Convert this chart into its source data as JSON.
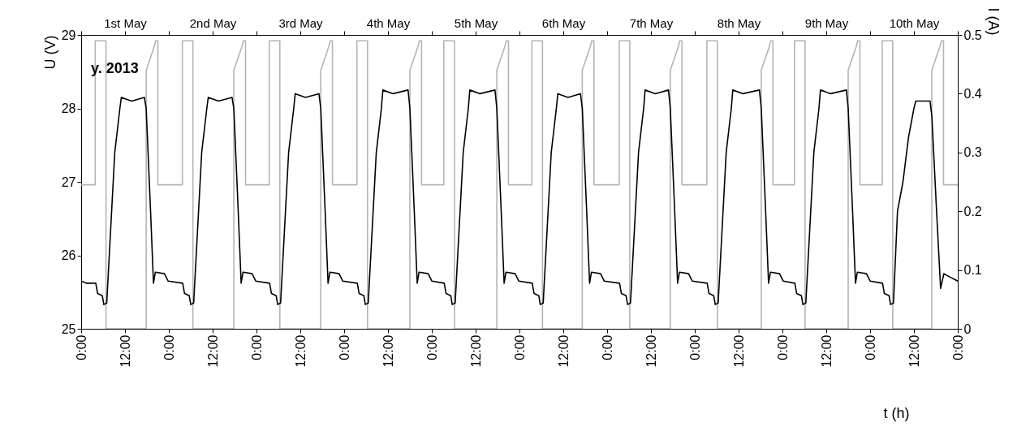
{
  "chart_data": {
    "type": "line",
    "xlabel": "t (h)",
    "ylabel": "U (V)",
    "y2label": "I (A)",
    "annotations": [
      "y. 2013"
    ],
    "xlim": [
      "2013-05-01T00:00",
      "2013-05-11T00:00"
    ],
    "xticks": [
      {
        "value": "2013-05-01T00:00",
        "label": "0:00"
      },
      {
        "value": "2013-05-01T12:00",
        "label": "12:00"
      },
      {
        "value": "2013-05-02T00:00",
        "label": "0:00"
      },
      {
        "value": "2013-05-02T12:00",
        "label": "12:00"
      },
      {
        "value": "2013-05-03T00:00",
        "label": "0:00"
      },
      {
        "value": "2013-05-03T12:00",
        "label": "12:00"
      },
      {
        "value": "2013-05-04T00:00",
        "label": "0:00"
      },
      {
        "value": "2013-05-04T12:00",
        "label": "12:00"
      },
      {
        "value": "2013-05-05T00:00",
        "label": "0:00"
      },
      {
        "value": "2013-05-05T12:00",
        "label": "12:00"
      },
      {
        "value": "2013-05-06T00:00",
        "label": "0:00"
      },
      {
        "value": "2013-05-06T12:00",
        "label": "12:00"
      },
      {
        "value": "2013-05-07T00:00",
        "label": "0:00"
      },
      {
        "value": "2013-05-07T12:00",
        "label": "12:00"
      },
      {
        "value": "2013-05-08T00:00",
        "label": "0:00"
      },
      {
        "value": "2013-05-08T12:00",
        "label": "12:00"
      },
      {
        "value": "2013-05-09T00:00",
        "label": "0:00"
      },
      {
        "value": "2013-05-09T12:00",
        "label": "12:00"
      },
      {
        "value": "2013-05-10T00:00",
        "label": "0:00"
      },
      {
        "value": "2013-05-10T12:00",
        "label": "12:00"
      },
      {
        "value": "2013-05-11T00:00",
        "label": "0:00"
      }
    ],
    "x2lim": [
      "2013-05-01T00:00",
      "2013-05-11T00:00"
    ],
    "x2ticks": [
      {
        "value": "2013-05-01T00:00",
        "label": null
      },
      {
        "value": "2013-05-01T12:00",
        "label": "1st May"
      },
      {
        "value": "2013-05-02T00:00",
        "label": null
      },
      {
        "value": "2013-05-02T12:00",
        "label": "2nd May"
      },
      {
        "value": "2013-05-03T00:00",
        "label": null
      },
      {
        "value": "2013-05-03T12:00",
        "label": "3rd May"
      },
      {
        "value": "2013-05-04T00:00",
        "label": null
      },
      {
        "value": "2013-05-04T12:00",
        "label": "4th May"
      },
      {
        "value": "2013-05-05T00:00",
        "label": null
      },
      {
        "value": "2013-05-05T12:00",
        "label": "5th May"
      },
      {
        "value": "2013-05-06T00:00",
        "label": null
      },
      {
        "value": "2013-05-06T12:00",
        "label": "6th May"
      },
      {
        "value": "2013-05-07T00:00",
        "label": null
      },
      {
        "value": "2013-05-07T12:00",
        "label": "7th May"
      },
      {
        "value": "2013-05-08T00:00",
        "label": null
      },
      {
        "value": "2013-05-08T12:00",
        "label": "8th May"
      },
      {
        "value": "2013-05-09T00:00",
        "label": null
      },
      {
        "value": "2013-05-09T12:00",
        "label": "9th May"
      },
      {
        "value": "2013-05-10T00:00",
        "label": null
      },
      {
        "value": "2013-05-10T12:00",
        "label": "10th  May"
      },
      {
        "value": "2013-05-11T00:00",
        "label": null
      }
    ],
    "ylim": [
      25,
      29
    ],
    "yticks": [
      25,
      26,
      27,
      28,
      29
    ],
    "y2lim": [
      0,
      0.5
    ],
    "y2ticks": [
      0,
      0.1,
      0.2,
      0.3,
      0.4,
      0.5
    ],
    "grid": false,
    "legend": false,
    "series": [
      {
        "color": "#b4b4b4",
        "axis": "y2",
        "x": [
          "2013-05-01T00:00",
          "2013-05-01T03:51",
          "2013-05-01T03:51",
          "2013-05-01T06:48",
          "2013-05-01T06:48",
          "2013-05-01T17:48",
          "2013-05-01T17:48",
          "2013-05-01T20:00",
          "2013-05-01T20:24",
          "2013-05-01T21:00",
          "2013-05-01T21:00",
          "2013-05-02T03:42",
          "2013-05-02T03:42",
          "2013-05-02T06:36",
          "2013-05-02T06:36",
          "2013-05-02T17:48",
          "2013-05-02T17:48",
          "2013-05-02T20:00",
          "2013-05-02T20:24",
          "2013-05-02T21:00",
          "2013-05-02T21:00",
          "2013-05-03T03:30",
          "2013-05-03T03:30",
          "2013-05-03T06:24",
          "2013-05-03T06:24",
          "2013-05-03T17:36",
          "2013-05-03T17:36",
          "2013-05-03T19:48",
          "2013-05-03T20:12",
          "2013-05-03T20:48",
          "2013-05-03T20:48",
          "2013-05-04T03:30",
          "2013-05-04T03:30",
          "2013-05-04T06:24",
          "2013-05-04T06:24",
          "2013-05-04T18:00",
          "2013-05-04T18:00",
          "2013-05-04T20:12",
          "2013-05-04T20:36",
          "2013-05-04T21:12",
          "2013-05-04T21:12",
          "2013-05-05T03:18",
          "2013-05-05T03:18",
          "2013-05-05T06:12",
          "2013-05-05T06:12",
          "2013-05-05T17:48",
          "2013-05-05T17:48",
          "2013-05-05T20:00",
          "2013-05-05T20:24",
          "2013-05-05T21:00",
          "2013-05-05T21:00",
          "2013-05-06T03:24",
          "2013-05-06T03:24",
          "2013-05-06T06:18",
          "2013-05-06T06:18",
          "2013-05-06T17:12",
          "2013-05-06T17:12",
          "2013-05-06T19:24",
          "2013-05-06T19:48",
          "2013-05-06T20:24",
          "2013-05-06T20:24",
          "2013-05-07T03:18",
          "2013-05-07T03:18",
          "2013-05-07T06:12",
          "2013-05-07T06:12",
          "2013-05-07T17:18",
          "2013-05-07T17:18",
          "2013-05-07T19:30",
          "2013-05-07T19:54",
          "2013-05-07T20:30",
          "2013-05-07T20:30",
          "2013-05-08T03:18",
          "2013-05-08T03:18",
          "2013-05-08T06:12",
          "2013-05-08T06:12",
          "2013-05-08T18:12",
          "2013-05-08T18:12",
          "2013-05-08T20:24",
          "2013-05-08T20:48",
          "2013-05-08T21:24",
          "2013-05-08T21:24",
          "2013-05-09T03:18",
          "2013-05-09T03:18",
          "2013-05-09T06:12",
          "2013-05-09T06:12",
          "2013-05-09T18:00",
          "2013-05-09T18:00",
          "2013-05-09T20:12",
          "2013-05-09T20:36",
          "2013-05-09T21:12",
          "2013-05-09T21:12",
          "2013-05-10T03:18",
          "2013-05-10T03:18",
          "2013-05-10T06:12",
          "2013-05-10T06:12",
          "2013-05-10T16:54",
          "2013-05-10T16:54",
          "2013-05-10T19:06",
          "2013-05-10T19:30",
          "2013-05-10T20:06",
          "2013-05-10T20:06",
          "2013-05-11T00:00"
        ],
        "values": [
          0.245,
          0.245,
          0.49,
          0.49,
          0,
          0,
          0.44,
          0.48,
          0.49,
          0.49,
          0.245,
          0.245,
          0.49,
          0.49,
          0,
          0,
          0.44,
          0.48,
          0.49,
          0.49,
          0.245,
          0.245,
          0.49,
          0.49,
          0,
          0,
          0.44,
          0.48,
          0.49,
          0.49,
          0.245,
          0.245,
          0.49,
          0.49,
          0,
          0,
          0.44,
          0.48,
          0.49,
          0.49,
          0.245,
          0.245,
          0.49,
          0.49,
          0,
          0,
          0.44,
          0.48,
          0.49,
          0.49,
          0.245,
          0.245,
          0.49,
          0.49,
          0,
          0,
          0.44,
          0.48,
          0.49,
          0.49,
          0.245,
          0.245,
          0.49,
          0.49,
          0,
          0,
          0.44,
          0.48,
          0.49,
          0.49,
          0.245,
          0.245,
          0.49,
          0.49,
          0,
          0,
          0.44,
          0.48,
          0.49,
          0.49,
          0.245,
          0.245,
          0.49,
          0.49,
          0,
          0,
          0.44,
          0.48,
          0.49,
          0.49,
          0.245,
          0.245,
          0.49,
          0.49,
          0,
          0,
          0.44,
          0.48,
          0.49,
          0.49,
          0.245,
          0.245
        ]
      },
      {
        "color": "#000000",
        "x": [
          "2013-05-01T00:00",
          "2013-05-01T01:30",
          "2013-05-01T04:00",
          "2013-05-01T04:30",
          "2013-05-01T05:48",
          "2013-05-01T06:12",
          "2013-05-01T07:00",
          "2013-05-01T09:12",
          "2013-05-01T10:36",
          "2013-05-01T11:00",
          "2013-05-01T13:48",
          "2013-05-01T17:18",
          "2013-05-01T17:48",
          "2013-05-01T19:00",
          "2013-05-01T19:48",
          "2013-05-01T20:18",
          "2013-05-01T22:48",
          "2013-05-01T23:48",
          "2013-05-02T03:48",
          "2013-05-02T04:18",
          "2013-05-02T05:36",
          "2013-05-02T06:00",
          "2013-05-02T06:48",
          "2013-05-02T09:00",
          "2013-05-02T10:24",
          "2013-05-02T10:48",
          "2013-05-02T13:36",
          "2013-05-02T17:18",
          "2013-05-02T17:48",
          "2013-05-02T19:00",
          "2013-05-02T19:48",
          "2013-05-02T20:18",
          "2013-05-02T22:48",
          "2013-05-02T23:48",
          "2013-05-03T03:36",
          "2013-05-03T04:06",
          "2013-05-03T05:24",
          "2013-05-03T05:48",
          "2013-05-03T06:36",
          "2013-05-03T08:48",
          "2013-05-03T10:12",
          "2013-05-03T10:36",
          "2013-05-03T13:24",
          "2013-05-03T17:06",
          "2013-05-03T17:36",
          "2013-05-03T18:48",
          "2013-05-03T19:36",
          "2013-05-03T20:06",
          "2013-05-03T22:36",
          "2013-05-03T23:36",
          "2013-05-04T03:36",
          "2013-05-04T04:06",
          "2013-05-04T05:24",
          "2013-05-04T05:48",
          "2013-05-04T06:36",
          "2013-05-04T08:48",
          "2013-05-04T10:12",
          "2013-05-04T10:36",
          "2013-05-04T13:24",
          "2013-05-04T17:30",
          "2013-05-04T18:00",
          "2013-05-04T19:12",
          "2013-05-04T20:00",
          "2013-05-04T20:30",
          "2013-05-04T23:00",
          "2013-05-05T00:00",
          "2013-05-05T03:24",
          "2013-05-05T03:54",
          "2013-05-05T05:12",
          "2013-05-05T05:36",
          "2013-05-05T06:24",
          "2013-05-05T08:36",
          "2013-05-05T10:00",
          "2013-05-05T10:24",
          "2013-05-05T13:12",
          "2013-05-05T17:18",
          "2013-05-05T17:48",
          "2013-05-05T19:00",
          "2013-05-05T19:48",
          "2013-05-05T20:18",
          "2013-05-05T22:48",
          "2013-05-05T23:48",
          "2013-05-06T03:30",
          "2013-05-06T04:00",
          "2013-05-06T05:18",
          "2013-05-06T05:42",
          "2013-05-06T06:30",
          "2013-05-06T08:42",
          "2013-05-06T10:06",
          "2013-05-06T10:30",
          "2013-05-06T13:18",
          "2013-05-06T16:42",
          "2013-05-06T17:12",
          "2013-05-06T18:24",
          "2013-05-06T19:12",
          "2013-05-06T19:42",
          "2013-05-06T22:12",
          "2013-05-06T23:12",
          "2013-05-07T03:24",
          "2013-05-07T03:54",
          "2013-05-07T05:12",
          "2013-05-07T05:36",
          "2013-05-07T06:24",
          "2013-05-07T08:36",
          "2013-05-07T10:00",
          "2013-05-07T10:24",
          "2013-05-07T13:12",
          "2013-05-07T16:48",
          "2013-05-07T17:18",
          "2013-05-07T18:30",
          "2013-05-07T19:18",
          "2013-05-07T19:48",
          "2013-05-07T22:18",
          "2013-05-07T23:18",
          "2013-05-08T03:24",
          "2013-05-08T03:54",
          "2013-05-08T05:12",
          "2013-05-08T05:36",
          "2013-05-08T06:24",
          "2013-05-08T08:36",
          "2013-05-08T10:00",
          "2013-05-08T10:24",
          "2013-05-08T13:12",
          "2013-05-08T17:42",
          "2013-05-08T18:12",
          "2013-05-08T19:24",
          "2013-05-08T20:12",
          "2013-05-08T20:42",
          "2013-05-08T23:12",
          "2013-05-09T00:12",
          "2013-05-09T03:24",
          "2013-05-09T03:54",
          "2013-05-09T05:12",
          "2013-05-09T05:36",
          "2013-05-09T06:24",
          "2013-05-09T08:36",
          "2013-05-09T10:00",
          "2013-05-09T10:24",
          "2013-05-09T13:12",
          "2013-05-09T17:30",
          "2013-05-09T18:00",
          "2013-05-09T19:12",
          "2013-05-09T20:00",
          "2013-05-09T20:30",
          "2013-05-09T23:00",
          "2013-05-10T00:00",
          "2013-05-10T03:24",
          "2013-05-10T03:54",
          "2013-05-10T05:12",
          "2013-05-10T05:36",
          "2013-05-10T06:24",
          "2013-05-10T07:30",
          "2013-05-10T09:00",
          "2013-05-10T10:30",
          "2013-05-10T12:00",
          "2013-05-10T12:30",
          "2013-05-10T16:24",
          "2013-05-10T16:54",
          "2013-05-10T18:12",
          "2013-05-10T19:18",
          "2013-05-10T20:12",
          "2013-05-10T22:00",
          "2013-05-11T00:00"
        ],
        "values": [
          25.65,
          25.62,
          25.62,
          25.48,
          25.45,
          25.33,
          25.35,
          27.4,
          28.0,
          28.15,
          28.1,
          28.15,
          28.0,
          26.6,
          25.62,
          25.77,
          25.75,
          25.65,
          25.62,
          25.48,
          25.45,
          25.33,
          25.35,
          27.4,
          28.0,
          28.15,
          28.1,
          28.15,
          28.0,
          26.6,
          25.62,
          25.77,
          25.75,
          25.65,
          25.62,
          25.48,
          25.45,
          25.33,
          25.35,
          27.4,
          28.0,
          28.2,
          28.15,
          28.2,
          28.0,
          26.6,
          25.62,
          25.77,
          25.75,
          25.65,
          25.62,
          25.48,
          25.45,
          25.33,
          25.35,
          27.4,
          28.0,
          28.25,
          28.2,
          28.25,
          28.0,
          26.6,
          25.62,
          25.77,
          25.75,
          25.65,
          25.62,
          25.48,
          25.45,
          25.33,
          25.35,
          27.4,
          28.0,
          28.25,
          28.2,
          28.25,
          28.0,
          26.6,
          25.62,
          25.77,
          25.75,
          25.65,
          25.62,
          25.48,
          25.45,
          25.33,
          25.35,
          27.4,
          28.0,
          28.2,
          28.15,
          28.2,
          28.0,
          26.6,
          25.62,
          25.77,
          25.75,
          25.65,
          25.62,
          25.48,
          25.45,
          25.33,
          25.35,
          27.4,
          28.0,
          28.25,
          28.2,
          28.25,
          28.0,
          26.6,
          25.62,
          25.77,
          25.75,
          25.65,
          25.62,
          25.48,
          25.45,
          25.33,
          25.35,
          27.4,
          28.0,
          28.25,
          28.2,
          28.25,
          28.0,
          26.6,
          25.62,
          25.77,
          25.75,
          25.65,
          25.62,
          25.48,
          25.45,
          25.33,
          25.35,
          27.4,
          28.0,
          28.25,
          28.2,
          28.25,
          28.0,
          26.6,
          25.62,
          25.77,
          25.75,
          25.65,
          25.62,
          25.48,
          25.45,
          25.33,
          25.35,
          26.6,
          27.0,
          27.6,
          28.0,
          28.1,
          28.1,
          27.9,
          26.6,
          25.55,
          25.75,
          25.7,
          25.65
        ]
      }
    ]
  }
}
